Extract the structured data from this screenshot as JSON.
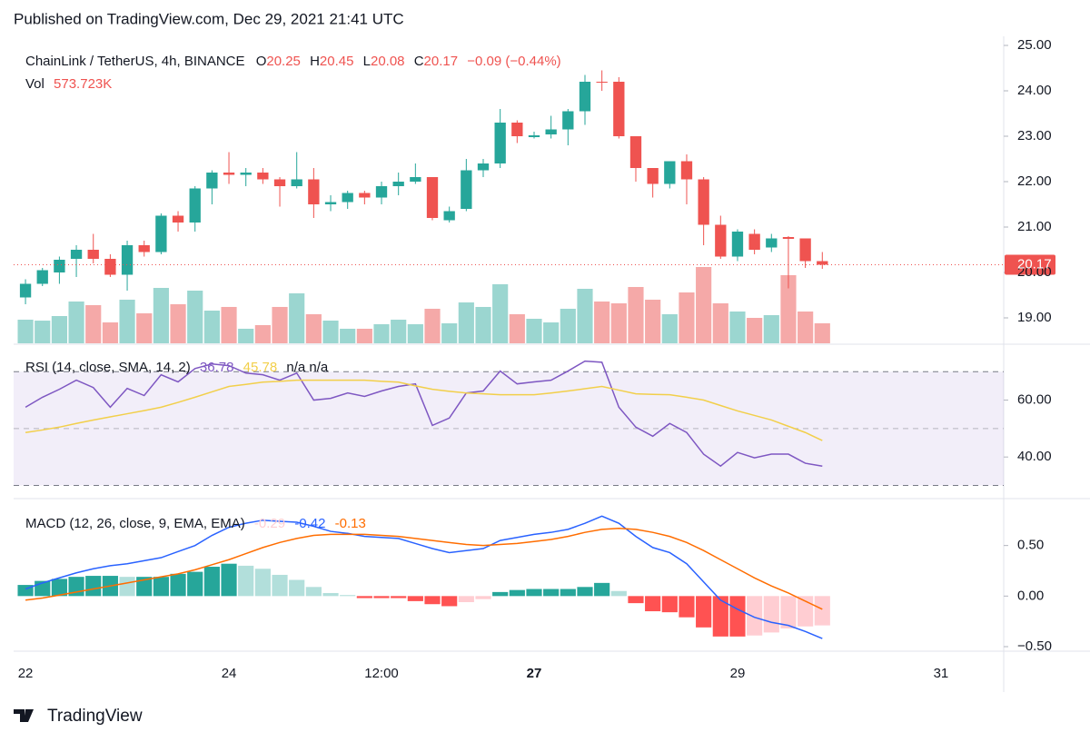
{
  "header": {
    "published": "Published on TradingView.com, Dec 29, 2021 21:41 UTC"
  },
  "footer": {
    "brand": "TradingView"
  },
  "chart_data": [
    {
      "type": "candlestick",
      "title": "ChainLink / TetherUS, 4h, BINANCE",
      "legend_labels": [
        "O",
        "H",
        "L",
        "C"
      ],
      "change": "−0.09 (−0.44%)",
      "volume_name": "Vol",
      "volume_value_label": "573.723K",
      "up_color": "#26a69a",
      "down_color": "#ef5350",
      "volume_up_color": "#9bd6d0",
      "volume_down_color": "#f5a9a8",
      "open": [
        19.45,
        19.75,
        20.0,
        20.3,
        20.5,
        20.3,
        19.95,
        20.6,
        20.45,
        21.25,
        21.1,
        21.85,
        22.2,
        22.15,
        22.2,
        22.05,
        21.9,
        22.05,
        21.5,
        21.55,
        21.75,
        21.65,
        21.9,
        22.0,
        22.1,
        21.15,
        21.4,
        22.25,
        22.4,
        23.3,
        22.98,
        23.04,
        23.15,
        23.55,
        24.2,
        24.2,
        23.0,
        22.3,
        21.95,
        22.45,
        22.05,
        21.05,
        20.35,
        20.85,
        20.55,
        20.78,
        20.75,
        20.25
      ],
      "high": [
        19.85,
        20.1,
        20.35,
        20.6,
        20.85,
        20.4,
        20.7,
        20.7,
        21.3,
        21.35,
        21.9,
        22.25,
        22.65,
        22.3,
        22.3,
        22.1,
        22.65,
        22.3,
        21.7,
        21.8,
        21.8,
        22.0,
        22.2,
        22.4,
        22.1,
        21.45,
        22.5,
        22.5,
        23.6,
        23.35,
        23.1,
        23.45,
        23.6,
        24.35,
        24.45,
        24.3,
        23.0,
        22.3,
        22.45,
        22.6,
        22.1,
        21.25,
        20.95,
        20.95,
        20.85,
        20.8,
        20.75,
        20.45
      ],
      "low": [
        19.3,
        19.7,
        19.75,
        19.9,
        20.2,
        19.9,
        19.6,
        20.35,
        20.4,
        20.9,
        20.9,
        21.5,
        21.95,
        21.9,
        21.95,
        21.45,
        21.85,
        21.2,
        21.35,
        21.4,
        21.5,
        21.5,
        21.7,
        21.95,
        21.15,
        21.1,
        21.35,
        22.1,
        22.3,
        22.85,
        22.95,
        22.95,
        22.8,
        23.25,
        24.0,
        22.95,
        22.0,
        21.65,
        21.85,
        21.5,
        20.6,
        20.3,
        20.25,
        20.4,
        20.45,
        19.65,
        20.1,
        20.08
      ],
      "close": [
        19.75,
        20.05,
        20.28,
        20.5,
        20.3,
        19.95,
        20.6,
        20.45,
        21.25,
        21.1,
        21.85,
        22.2,
        22.15,
        22.2,
        22.05,
        21.9,
        22.05,
        21.5,
        21.55,
        21.75,
        21.65,
        21.9,
        22.0,
        22.1,
        21.2,
        21.35,
        22.25,
        22.4,
        23.3,
        23.0,
        23.02,
        23.15,
        23.55,
        24.2,
        24.18,
        23.0,
        22.3,
        21.95,
        22.45,
        22.05,
        21.05,
        20.35,
        20.9,
        20.5,
        20.75,
        20.74,
        20.25,
        20.17
      ],
      "volume": [
        677,
        650,
        781,
        1198,
        1094,
        599,
        1250,
        859,
        1588,
        1120,
        1510,
        937,
        1042,
        417,
        521,
        1042,
        1432,
        833,
        651,
        417,
        417,
        547,
        677,
        547,
        990,
        573,
        1172,
        1042,
        1693,
        833,
        703,
        599,
        990,
        1562,
        1198,
        1146,
        1614,
        1250,
        833,
        1458,
        2187,
        1146,
        911,
        729,
        807,
        1953,
        911,
        573.723
      ],
      "volume_lim": [
        0,
        8800
      ],
      "ylim": [
        18.44,
        25.2
      ],
      "yticks": [
        {
          "value": 25,
          "label": "25.00"
        },
        {
          "value": 24,
          "label": "24.00"
        },
        {
          "value": 23,
          "label": "23.00"
        },
        {
          "value": 22,
          "label": "22.00"
        },
        {
          "value": 21,
          "label": "21.00"
        },
        {
          "value": 20,
          "label": "20.00"
        },
        {
          "value": 19,
          "label": "19.00"
        }
      ],
      "xlim": [
        -0.7,
        57.7
      ],
      "xticks": [
        {
          "value": 0,
          "label": "22"
        },
        {
          "value": 12,
          "label": "24"
        },
        {
          "value": 21,
          "label": "12:00"
        },
        {
          "value": 30,
          "label": "27"
        },
        {
          "value": 42,
          "label": "29"
        },
        {
          "value": 54,
          "label": "31"
        }
      ]
    },
    {
      "type": "line",
      "title": "RSI (14, close, SMA, 14, 2)",
      "na_labels": "n/a  n/a",
      "series": [
        {
          "name": "RSI",
          "color": "#7e57c2",
          "values": [
            57.5,
            61.0,
            63.8,
            67.0,
            64.4,
            57.5,
            64.1,
            61.6,
            68.9,
            66.4,
            71.1,
            72.7,
            72.1,
            69.5,
            68.9,
            67.0,
            69.5,
            60.0,
            60.6,
            62.5,
            61.3,
            63.2,
            64.8,
            65.7,
            51.1,
            53.7,
            62.5,
            63.2,
            70.2,
            65.7,
            66.4,
            67.0,
            70.2,
            73.7,
            73.3,
            57.5,
            50.5,
            47.3,
            51.8,
            48.6,
            41.0,
            36.8,
            41.6,
            39.7,
            41.0,
            41.0,
            37.8,
            36.78
          ]
        },
        {
          "name": "SMA",
          "color": "#f2cf4a",
          "values": [
            48.6,
            49.5,
            50.5,
            51.8,
            53.0,
            54.1,
            55.2,
            56.3,
            57.5,
            59.2,
            61.0,
            62.9,
            64.8,
            65.5,
            66.3,
            66.6,
            67.0,
            67.0,
            67.0,
            67.0,
            67.0,
            66.6,
            66.3,
            65.0,
            63.8,
            63.1,
            62.5,
            62.2,
            61.9,
            61.9,
            61.9,
            62.5,
            63.2,
            64.0,
            64.8,
            63.5,
            62.2,
            62.0,
            61.9,
            61.0,
            60.0,
            58.1,
            56.2,
            54.6,
            53.0,
            50.8,
            48.6,
            45.78
          ]
        }
      ],
      "bands": [
        70,
        50,
        30
      ],
      "band_color": "#7e57c2",
      "ylim": [
        25.7,
        79
      ],
      "yticks": [
        {
          "value": 60,
          "label": "60.00"
        },
        {
          "value": 40,
          "label": "40.00"
        }
      ]
    },
    {
      "type": "macd",
      "title": "MACD (12, 26, close, 9, EMA, EMA)",
      "histogram": [
        0.11,
        0.15,
        0.17,
        0.19,
        0.2,
        0.2,
        0.19,
        0.19,
        0.19,
        0.22,
        0.24,
        0.29,
        0.32,
        0.3,
        0.27,
        0.21,
        0.16,
        0.09,
        0.03,
        0.01,
        -0.02,
        -0.02,
        -0.02,
        -0.05,
        -0.08,
        -0.1,
        -0.06,
        -0.03,
        0.04,
        0.06,
        0.07,
        0.07,
        0.07,
        0.09,
        0.13,
        0.05,
        -0.07,
        -0.15,
        -0.16,
        -0.21,
        -0.31,
        -0.4,
        -0.4,
        -0.39,
        -0.36,
        -0.32,
        -0.3,
        -0.29
      ],
      "histogram_colors": [
        "#26a69a",
        "#b2dfdb",
        "#ffcdd2",
        "#ff5252"
      ],
      "series": [
        {
          "name": "MACD",
          "color": "#2962ff",
          "values": [
            0.07,
            0.13,
            0.18,
            0.23,
            0.27,
            0.3,
            0.32,
            0.35,
            0.38,
            0.44,
            0.5,
            0.6,
            0.68,
            0.72,
            0.75,
            0.74,
            0.73,
            0.69,
            0.64,
            0.62,
            0.59,
            0.58,
            0.57,
            0.52,
            0.47,
            0.43,
            0.45,
            0.47,
            0.55,
            0.58,
            0.61,
            0.63,
            0.66,
            0.72,
            0.79,
            0.72,
            0.59,
            0.48,
            0.43,
            0.32,
            0.14,
            -0.04,
            -0.13,
            -0.21,
            -0.26,
            -0.29,
            -0.35,
            -0.42
          ]
        },
        {
          "name": "Signal",
          "color": "#ff6d00",
          "values": [
            -0.04,
            -0.02,
            0.01,
            0.04,
            0.07,
            0.1,
            0.13,
            0.16,
            0.19,
            0.22,
            0.26,
            0.31,
            0.36,
            0.42,
            0.48,
            0.53,
            0.57,
            0.6,
            0.61,
            0.61,
            0.61,
            0.6,
            0.59,
            0.57,
            0.55,
            0.53,
            0.51,
            0.5,
            0.51,
            0.52,
            0.54,
            0.56,
            0.59,
            0.63,
            0.66,
            0.67,
            0.66,
            0.63,
            0.59,
            0.53,
            0.45,
            0.36,
            0.27,
            0.18,
            0.1,
            0.03,
            -0.05,
            -0.13
          ]
        }
      ],
      "ylim": [
        -0.527,
        0.946
      ],
      "yticks": [
        {
          "value": 0.5,
          "label": "0.50"
        },
        {
          "value": 0,
          "label": "0.00"
        },
        {
          "value": -0.5,
          "label": "−0.50"
        }
      ]
    }
  ]
}
